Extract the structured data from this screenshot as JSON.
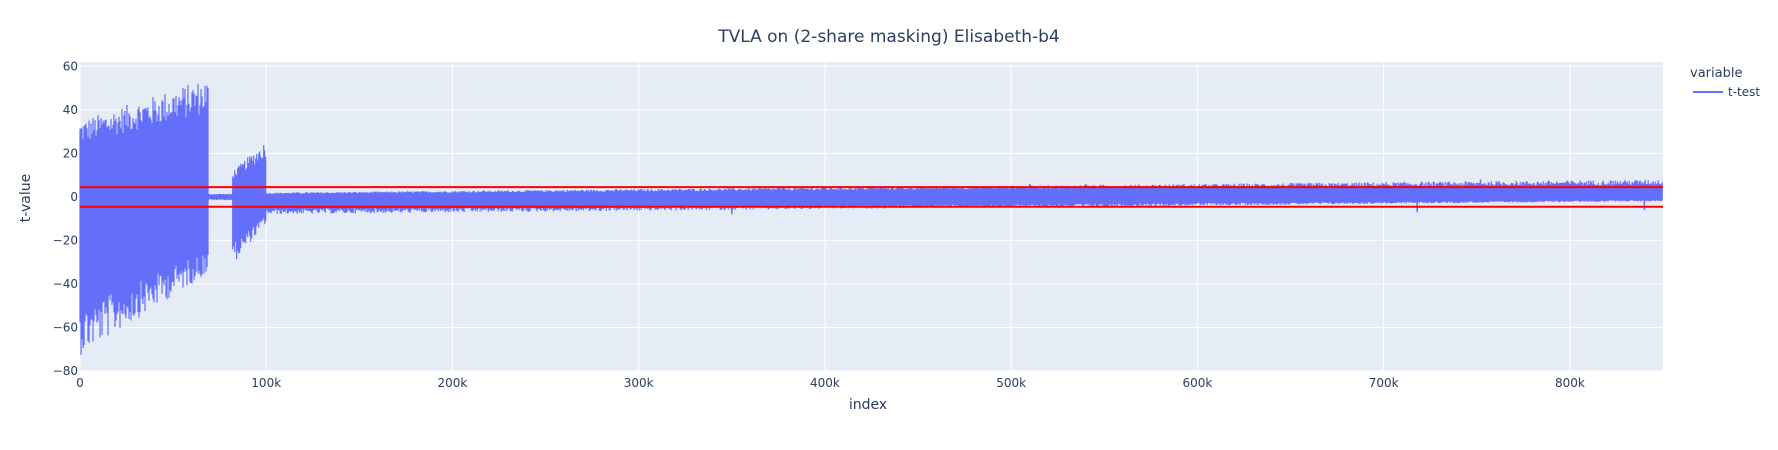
{
  "chart_data": {
    "type": "line",
    "title": "TVLA on (2-share masking) Elisabeth-b4",
    "xlabel": "index",
    "ylabel": "t-value",
    "xlim": [
      0,
      850000
    ],
    "ylim": [
      -80,
      62
    ],
    "x_ticks": [
      0,
      100000,
      200000,
      300000,
      400000,
      500000,
      600000,
      700000,
      800000
    ],
    "x_tick_labels": [
      "0",
      "100k",
      "200k",
      "300k",
      "400k",
      "500k",
      "600k",
      "700k",
      "800k"
    ],
    "y_ticks": [
      -80,
      -60,
      -40,
      -20,
      0,
      20,
      40,
      60
    ],
    "y_tick_labels": [
      "−80",
      "−60",
      "−40",
      "−20",
      "0",
      "20",
      "40",
      "60"
    ],
    "grid": true,
    "legend": {
      "title": "variable",
      "placement": "top-right"
    },
    "series": [
      {
        "name": "t-test",
        "color": "#636efa",
        "segments": [
          {
            "x_range": [
              0,
              69000
            ],
            "y_range_min": [
              -73,
              -35
            ],
            "y_range_max": [
              35,
              55
            ],
            "description": "high amplitude leakage region"
          },
          {
            "x_range": [
              69000,
              82000
            ],
            "y_range_min": [
              -1.5
            ],
            "y_range_max": [
              1.5
            ]
          },
          {
            "x_range": [
              82000,
              100000
            ],
            "y_range_min": [
              -31,
              -12
            ],
            "y_range_max": [
              12,
              26
            ]
          },
          {
            "x_range": [
              100000,
              850000
            ],
            "y_range_min": [
              -8,
              -2
            ],
            "y_range_max": [
              2,
              8
            ]
          }
        ],
        "spikes": [
          {
            "x": 350000,
            "y": -8
          },
          {
            "x": 510000,
            "y": 6
          },
          {
            "x": 540000,
            "y": 6
          },
          {
            "x": 680000,
            "y": 6
          },
          {
            "x": 718000,
            "y": -7
          },
          {
            "x": 752000,
            "y": 8
          },
          {
            "x": 827000,
            "y": 6
          },
          {
            "x": 840000,
            "y": -6
          }
        ]
      }
    ],
    "threshold_lines": [
      {
        "y": 4.5,
        "color": "#ff0000"
      },
      {
        "y": -4.5,
        "color": "#ff0000"
      }
    ]
  },
  "colors": {
    "plot_bg": "#e5ecf6",
    "grid": "#ffffff",
    "text": "#2a3f5f",
    "trace": "#636efa",
    "threshold": "#ff0000"
  }
}
